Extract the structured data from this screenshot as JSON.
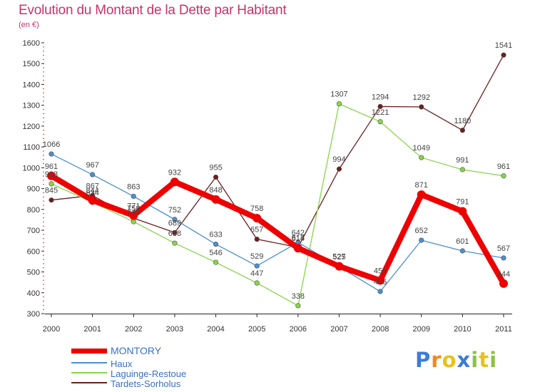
{
  "header": {
    "title": "Evolution du Montant de la Dette par Habitant",
    "subtitle": "(en €)"
  },
  "chart_data": {
    "type": "line",
    "x": [
      2000,
      2001,
      2002,
      2003,
      2004,
      2005,
      2006,
      2007,
      2008,
      2009,
      2010,
      2011
    ],
    "ylim": [
      300,
      1600
    ],
    "yticks": [
      300,
      400,
      500,
      600,
      700,
      800,
      900,
      1000,
      1100,
      1200,
      1300,
      1400,
      1500,
      1600
    ],
    "grid": false,
    "legend_position": "bottom-left",
    "series": [
      {
        "name": "MONTORY",
        "color": "#ee0000",
        "values": [
          961,
          844,
          771,
          932,
          848,
          758,
          614,
          527,
          459,
          871,
          791,
          444
        ]
      },
      {
        "name": "Haux",
        "color": "#4a8fd1",
        "values": [
          1066,
          967,
          863,
          752,
          633,
          529,
          642,
          525,
          406,
          652,
          601,
          567
        ]
      },
      {
        "name": "Laguinge-Restoue",
        "color": "#8ad34a",
        "values": [
          923,
          834,
          741,
          638,
          546,
          447,
          338,
          1307,
          1221,
          1049,
          991,
          961
        ]
      },
      {
        "name": "Tardets-Sorholus",
        "color": "#6b1f1f",
        "values": [
          845,
          867,
          758,
          689,
          955,
          657,
          618,
          994,
          1294,
          1292,
          1180,
          1541
        ]
      }
    ]
  },
  "logo": {
    "letters": [
      "P",
      "r",
      "o",
      "x",
      "i",
      "t",
      "i"
    ],
    "colors": [
      "#3d7cd6",
      "#f08a1c",
      "#e8c21a",
      "#3d7cd6",
      "#8ac43f",
      "#e8c21a",
      "#8ac43f"
    ]
  }
}
